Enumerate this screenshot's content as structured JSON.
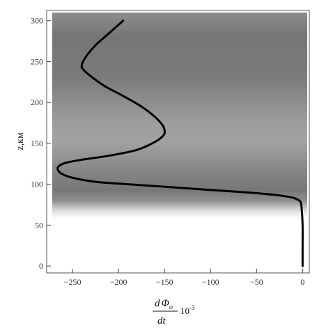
{
  "chart_data": {
    "type": "line",
    "title": "",
    "ylabel": "z,км",
    "xlabel": {
      "numerator_d": "d",
      "numerator_phi": "Φ",
      "numerator_sub": "o",
      "denominator": "dt",
      "scale_base": "10",
      "scale_exp": "-3"
    },
    "xlim": [
      -272,
      5
    ],
    "ylim": [
      -5,
      310
    ],
    "x_ticks": [
      -250,
      -200,
      -150,
      -100,
      -50,
      0
    ],
    "x_tick_labels": [
      "−250",
      "−200",
      "−150",
      "−100",
      "−50",
      "0"
    ],
    "y_ticks": [
      0,
      50,
      100,
      150,
      200,
      250,
      300
    ],
    "y_tick_labels": [
      "0",
      "50",
      "100",
      "150",
      "200",
      "250",
      "300"
    ],
    "grid": false,
    "background_shading": "grayscale band, white below ~85 km, gray above",
    "series": [
      {
        "color": "#000000",
        "x": [
          0,
          0,
          0,
          -1,
          -2,
          -5,
          -12,
          -30,
          -60,
          -100,
          -150,
          -190,
          -225,
          -250,
          -262,
          -266,
          -265,
          -258,
          -240,
          -210,
          -180,
          -160,
          -151,
          -150,
          -152,
          -160,
          -175,
          -195,
          -215,
          -230,
          -238,
          -240,
          -236,
          -225,
          -212,
          -200,
          -195
        ],
        "y": [
          0,
          20,
          50,
          70,
          78,
          81,
          84,
          87,
          90,
          93,
          97,
          100,
          103,
          108,
          113,
          118,
          122,
          126,
          130,
          135,
          142,
          152,
          160,
          166,
          172,
          182,
          195,
          208,
          220,
          232,
          240,
          245,
          255,
          270,
          283,
          295,
          300
        ]
      }
    ]
  }
}
